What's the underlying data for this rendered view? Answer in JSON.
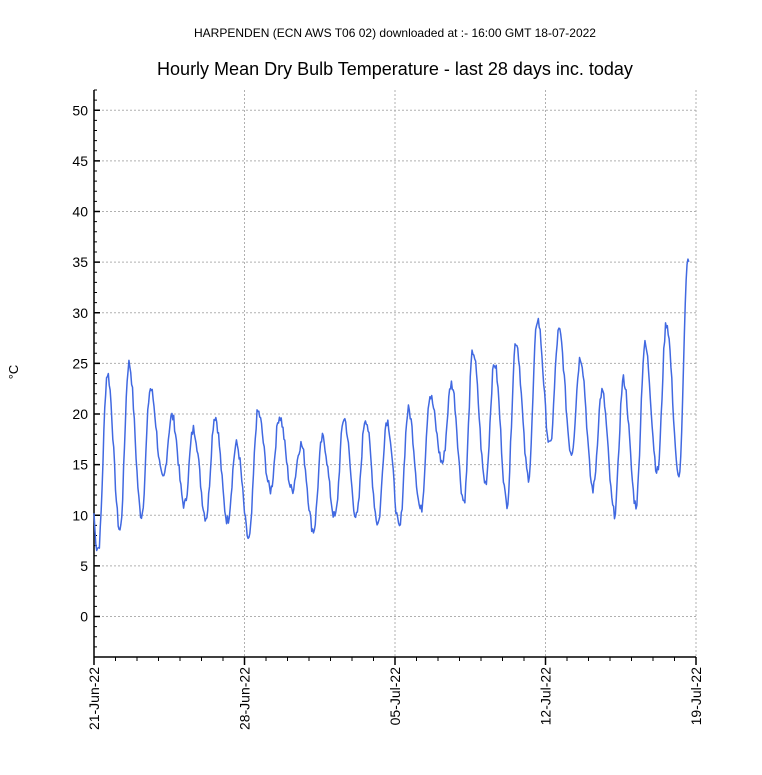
{
  "header": {
    "subtitle": "HARPENDEN (ECN AWS T06 02) downloaded at :- 16:00 GMT 18-07-2022",
    "title": "Hourly Mean Dry Bulb Temperature - last 28 days inc. today"
  },
  "chart_data": {
    "type": "line",
    "title": "Hourly Mean Dry Bulb Temperature - last 28 days inc. today",
    "subtitle": "HARPENDEN (ECN AWS T06 02) downloaded at :- 16:00 GMT 18-07-2022",
    "ylabel": "°C",
    "xlabel": "",
    "ylim": [
      -4,
      52
    ],
    "yticks": [
      0,
      5,
      10,
      15,
      20,
      25,
      30,
      35,
      40,
      45,
      50
    ],
    "xlim_days": [
      0,
      28
    ],
    "xtick_labels": [
      "21-Jun-22",
      "28-Jun-22",
      "05-Jul-22",
      "12-Jul-22",
      "19-Jul-22"
    ],
    "grid": true,
    "line_color": "#4169E1",
    "series": [
      {
        "daily_extremes": [
          {
            "date": "21-Jun-22",
            "min": 6.8,
            "max": 24.0
          },
          {
            "date": "22-Jun-22",
            "min": 8.5,
            "max": 25.0
          },
          {
            "date": "23-Jun-22",
            "min": 10.0,
            "max": 22.5
          },
          {
            "date": "24-Jun-22",
            "min": 13.5,
            "max": 19.8
          },
          {
            "date": "25-Jun-22",
            "min": 11.0,
            "max": 18.5
          },
          {
            "date": "26-Jun-22",
            "min": 9.8,
            "max": 19.8
          },
          {
            "date": "27-Jun-22",
            "min": 9.5,
            "max": 17.0
          },
          {
            "date": "28-Jun-22",
            "min": 7.6,
            "max": 20.2
          },
          {
            "date": "29-Jun-22",
            "min": 12.5,
            "max": 19.8
          },
          {
            "date": "30-Jun-22",
            "min": 12.5,
            "max": 17.0
          },
          {
            "date": "01-Jul-22",
            "min": 8.5,
            "max": 17.6
          },
          {
            "date": "02-Jul-22",
            "min": 9.8,
            "max": 19.6
          },
          {
            "date": "03-Jul-22",
            "min": 9.8,
            "max": 19.6
          },
          {
            "date": "04-Jul-22",
            "min": 9.2,
            "max": 19.4
          },
          {
            "date": "05-Jul-22",
            "min": 8.7,
            "max": 20.4
          },
          {
            "date": "06-Jul-22",
            "min": 10.5,
            "max": 21.8
          },
          {
            "date": "07-Jul-22",
            "min": 15.2,
            "max": 23.0
          },
          {
            "date": "08-Jul-22",
            "min": 11.4,
            "max": 26.2
          },
          {
            "date": "09-Jul-22",
            "min": 13.2,
            "max": 25.0
          },
          {
            "date": "10-Jul-22",
            "min": 11.2,
            "max": 27.2
          },
          {
            "date": "11-Jul-22",
            "min": 13.8,
            "max": 29.4
          },
          {
            "date": "12-Jul-22",
            "min": 16.8,
            "max": 28.2
          },
          {
            "date": "13-Jul-22",
            "min": 16.2,
            "max": 25.6
          },
          {
            "date": "14-Jul-22",
            "min": 12.6,
            "max": 22.2
          },
          {
            "date": "15-Jul-22",
            "min": 10.2,
            "max": 23.4
          },
          {
            "date": "16-Jul-22",
            "min": 11.0,
            "max": 26.8
          },
          {
            "date": "17-Jul-22",
            "min": 14.3,
            "max": 29.0
          },
          {
            "date": "18-Jul-22",
            "min": 13.8,
            "max": 35.3,
            "partial": true
          }
        ]
      }
    ]
  }
}
